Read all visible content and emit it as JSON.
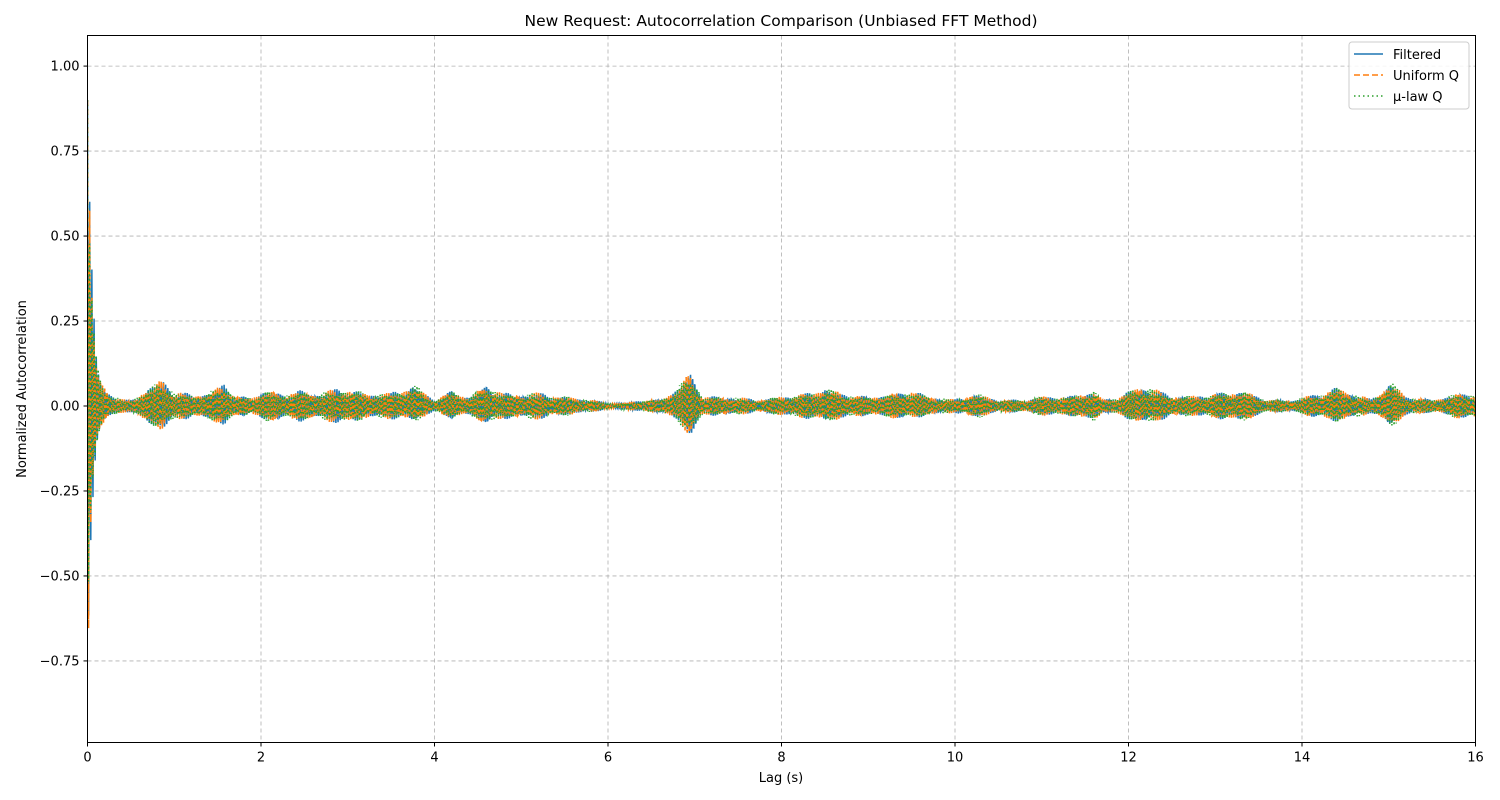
{
  "chart_data": {
    "type": "line",
    "title": "New Request: Autocorrelation Comparison (Unbiased FFT Method)",
    "xlabel": "Lag (s)",
    "ylabel": "Normalized Autocorrelation",
    "xlim": [
      0,
      16
    ],
    "ylim": [
      -0.99,
      1.09
    ],
    "xticks": [
      0,
      2,
      4,
      6,
      8,
      10,
      12,
      14,
      16
    ],
    "xtick_labels": [
      "0",
      "2",
      "4",
      "6",
      "8",
      "10",
      "12",
      "14",
      "16"
    ],
    "yticks": [
      -0.75,
      -0.5,
      -0.25,
      0.0,
      0.25,
      0.5,
      0.75,
      1.0
    ],
    "ytick_labels": [
      "−0.75",
      "−0.50",
      "−0.25",
      "0.00",
      "0.25",
      "0.50",
      "0.75",
      "1.00"
    ],
    "grid": true,
    "legend_position": "top-right",
    "series": [
      {
        "name": "Filtered",
        "color": "#1f77b4",
        "style": "solid"
      },
      {
        "name": "Uniform Q",
        "color": "#ff7f0e",
        "style": "dashed"
      },
      {
        "name": "μ-law Q",
        "color": "#2ca02c",
        "style": "dotted"
      }
    ],
    "envelope": {
      "x": [
        0,
        0.005,
        0.02,
        0.04,
        0.06,
        0.08,
        0.1,
        0.13,
        0.16,
        0.2,
        0.25,
        0.3,
        0.4,
        0.5,
        0.6,
        0.75,
        0.87,
        1.0,
        1.2,
        1.4,
        1.58,
        1.7,
        1.9,
        2.05,
        2.3,
        2.5,
        2.7,
        2.95,
        3.2,
        3.5,
        3.75,
        4.0,
        4.2,
        4.4,
        4.6,
        4.8,
        5.0,
        5.2,
        5.5,
        5.8,
        6.0,
        6.2,
        6.4,
        6.6,
        6.8,
        6.95,
        7.1,
        7.4,
        7.7,
        8.0,
        8.3,
        8.5,
        8.7,
        9.0,
        9.3,
        9.5,
        9.7,
        10.0,
        10.2,
        10.5,
        10.8,
        11.0,
        11.3,
        11.6,
        11.7,
        11.9,
        12.15,
        12.4,
        12.7,
        13.0,
        13.3,
        13.6,
        13.9,
        14.2,
        14.4,
        14.6,
        14.8,
        15.0,
        15.2,
        15.5,
        15.8,
        16.0
      ],
      "upper": [
        0.9,
        0.85,
        0.74,
        0.5,
        0.34,
        0.25,
        0.17,
        0.12,
        0.09,
        0.07,
        0.05,
        0.03,
        0.02,
        0.02,
        0.04,
        0.06,
        0.1,
        0.04,
        0.04,
        0.04,
        0.08,
        0.03,
        0.03,
        0.05,
        0.04,
        0.05,
        0.04,
        0.06,
        0.04,
        0.04,
        0.07,
        0.02,
        0.05,
        0.03,
        0.07,
        0.04,
        0.04,
        0.04,
        0.03,
        0.02,
        0.01,
        0.01,
        0.02,
        0.02,
        0.06,
        0.11,
        0.03,
        0.03,
        0.02,
        0.03,
        0.04,
        0.06,
        0.04,
        0.03,
        0.04,
        0.05,
        0.03,
        0.02,
        0.04,
        0.02,
        0.02,
        0.03,
        0.03,
        0.05,
        0.02,
        0.03,
        0.07,
        0.04,
        0.03,
        0.04,
        0.05,
        0.02,
        0.02,
        0.04,
        0.06,
        0.04,
        0.02,
        0.08,
        0.03,
        0.02,
        0.04,
        0.04
      ],
      "lower": [
        -0.9,
        -0.9,
        -0.6,
        -0.4,
        -0.29,
        -0.2,
        -0.14,
        -0.1,
        -0.08,
        -0.06,
        -0.04,
        -0.03,
        -0.02,
        -0.02,
        -0.04,
        -0.06,
        -0.09,
        -0.04,
        -0.04,
        -0.04,
        -0.07,
        -0.03,
        -0.03,
        -0.05,
        -0.04,
        -0.05,
        -0.04,
        -0.06,
        -0.04,
        -0.04,
        -0.05,
        -0.02,
        -0.04,
        -0.03,
        -0.06,
        -0.04,
        -0.04,
        -0.04,
        -0.03,
        -0.02,
        -0.01,
        -0.01,
        -0.02,
        -0.02,
        -0.05,
        -0.1,
        -0.03,
        -0.03,
        -0.02,
        -0.03,
        -0.04,
        -0.05,
        -0.04,
        -0.03,
        -0.04,
        -0.04,
        -0.03,
        -0.02,
        -0.04,
        -0.02,
        -0.02,
        -0.03,
        -0.03,
        -0.05,
        -0.02,
        -0.03,
        -0.06,
        -0.04,
        -0.03,
        -0.04,
        -0.05,
        -0.02,
        -0.02,
        -0.04,
        -0.05,
        -0.04,
        -0.02,
        -0.07,
        -0.03,
        -0.02,
        -0.04,
        -0.04
      ]
    },
    "oscillation_hz": 40
  }
}
